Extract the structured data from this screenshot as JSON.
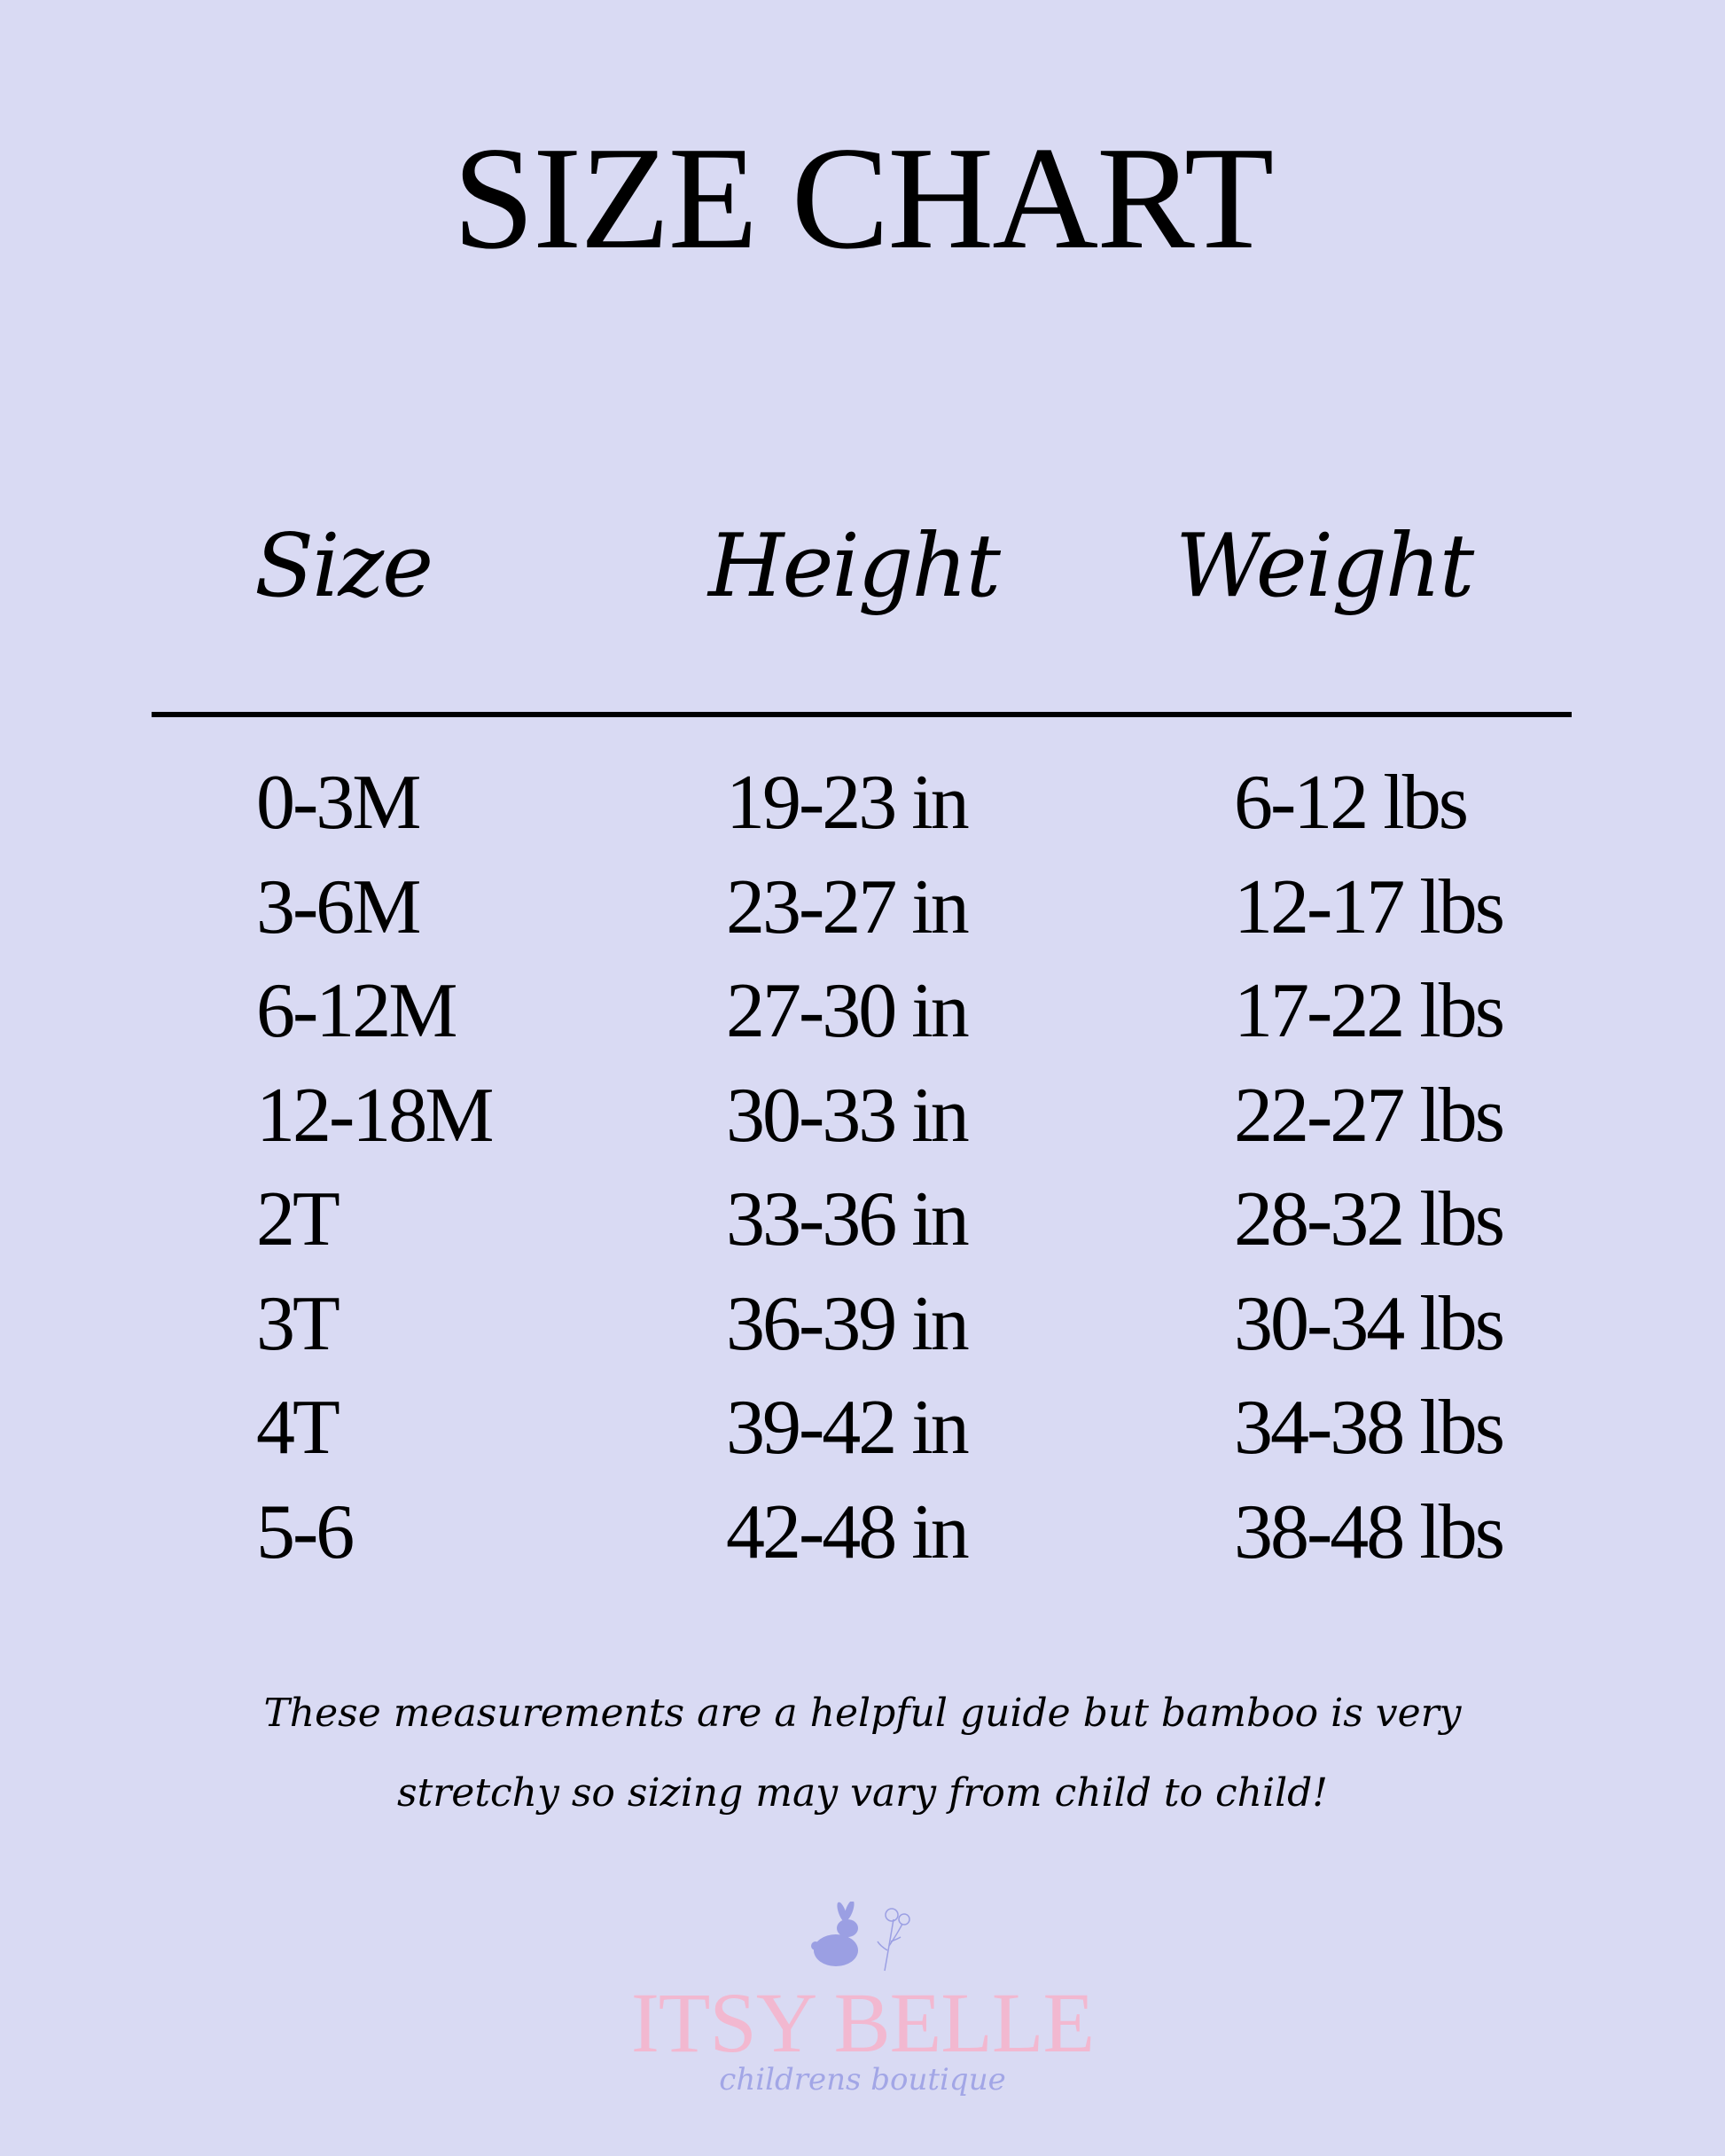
{
  "title": "SIZE CHART",
  "table": {
    "headers": [
      "Size",
      "Height",
      "Weight"
    ],
    "rows": [
      [
        "0-3M",
        "19-23 in",
        "6-12 lbs"
      ],
      [
        "3-6M",
        "23-27 in",
        "12-17 lbs"
      ],
      [
        "6-12M",
        "27-30 in",
        "17-22 lbs"
      ],
      [
        "12-18M",
        "30-33 in",
        "22-27 lbs"
      ],
      [
        "2T",
        "33-36 in",
        "28-32 lbs"
      ],
      [
        "3T",
        "36-39 in",
        "30-34 lbs"
      ],
      [
        "4T",
        "39-42 in",
        "34-38 lbs"
      ],
      [
        "5-6",
        "42-48 in",
        "38-48 lbs"
      ]
    ]
  },
  "note": "These measurements are a helpful guide but bamboo is very stretchy so sizing may vary from child to child!",
  "logo": {
    "icon": "bunny-flower-icon",
    "brand": "ITSY BELLE",
    "tagline": "childrens boutique",
    "colors": {
      "brand": "#f2b8d0",
      "accent": "#9b9fe3"
    }
  },
  "colors": {
    "background": "#d9daf3",
    "text": "#000000"
  }
}
